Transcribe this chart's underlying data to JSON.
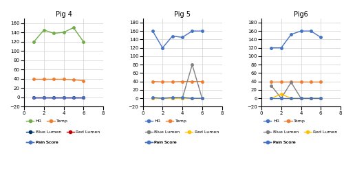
{
  "pig4": {
    "title": "Pig 4",
    "x": [
      1,
      2,
      3,
      4,
      5,
      6
    ],
    "HR": [
      120,
      145,
      138,
      140,
      150,
      120
    ],
    "Temp": [
      39,
      39,
      39,
      39,
      38,
      36
    ],
    "BlueLumen": [
      0,
      0,
      0,
      0,
      0,
      0
    ],
    "RedLumen": [
      0,
      0,
      0,
      0,
      0,
      0
    ],
    "PainScore": [
      0,
      0,
      0,
      0,
      0,
      0
    ],
    "ylim": [
      -20,
      170
    ],
    "yticks": [
      -20,
      0,
      20,
      40,
      60,
      80,
      100,
      120,
      140,
      160
    ],
    "colors": {
      "HR": "#70AD47",
      "Temp": "#ED7D31",
      "BlueLumen": "#003366",
      "RedLumen": "#C00000",
      "PainScore": "#4472C4"
    }
  },
  "pig5": {
    "title": "Pig 5",
    "x": [
      1,
      2,
      3,
      4,
      5,
      6
    ],
    "HR": [
      160,
      120,
      148,
      145,
      160,
      160
    ],
    "Temp": [
      40,
      39,
      39,
      40,
      40,
      40
    ],
    "BlueLumen": [
      0,
      0,
      0,
      0,
      80,
      0
    ],
    "RedLumen": [
      0,
      0,
      0,
      0,
      0,
      0
    ],
    "PainScore": [
      2,
      0,
      2,
      2,
      0,
      0
    ],
    "ylim": [
      -20,
      190
    ],
    "yticks": [
      -20,
      0,
      20,
      40,
      60,
      80,
      100,
      120,
      140,
      160,
      180
    ],
    "colors": {
      "HR": "#4472C4",
      "Temp": "#ED7D31",
      "BlueLumen": "#808080",
      "RedLumen": "#FFC000",
      "PainScore": "#4472C4"
    }
  },
  "pig6": {
    "title": "Pig6",
    "x": [
      1,
      2,
      3,
      4,
      5,
      6
    ],
    "HR": [
      120,
      120,
      152,
      160,
      160,
      145
    ],
    "Temp": [
      39,
      39,
      39,
      39,
      39,
      39
    ],
    "BlueLumen": [
      30,
      0,
      38,
      0,
      0,
      0
    ],
    "RedLumen": [
      0,
      10,
      0,
      0,
      0,
      0
    ],
    "PainScore": [
      0,
      0,
      0,
      0,
      0,
      0
    ],
    "ylim": [
      -20,
      190
    ],
    "yticks": [
      -20,
      0,
      20,
      40,
      60,
      80,
      100,
      120,
      140,
      160,
      180
    ],
    "colors": {
      "HR": "#4472C4",
      "Temp": "#ED7D31",
      "BlueLumen": "#808080",
      "RedLumen": "#FFC000",
      "PainScore": "#4472C4"
    }
  },
  "pigs": [
    "pig4",
    "pig5",
    "pig6"
  ],
  "legend_rows": [
    [
      "HR",
      "Temp"
    ],
    [
      "Blue Lumen",
      "Red Lumen"
    ],
    [
      "Pain Score"
    ]
  ],
  "legend_keys": [
    "HR",
    "Temp",
    "BlueLumen",
    "RedLumen",
    "PainScore"
  ],
  "legend_labels": [
    "HR",
    "Temp",
    "Blue Lumen",
    "Red Lumen",
    "Pain Score"
  ]
}
